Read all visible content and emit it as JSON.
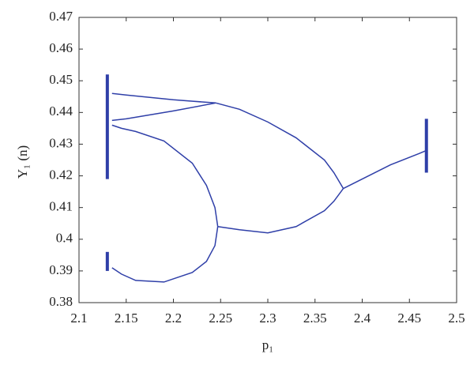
{
  "chart_data": {
    "type": "line",
    "x_label": "p₁",
    "y_label": "Y₁ (n)",
    "xlim": [
      2.1,
      2.5
    ],
    "ylim": [
      0.38,
      0.47
    ],
    "xticks": [
      2.1,
      2.15,
      2.2,
      2.25,
      2.3,
      2.35,
      2.4,
      2.45,
      2.5
    ],
    "yticks": [
      0.38,
      0.39,
      0.4,
      0.41,
      0.42,
      0.43,
      0.44,
      0.45,
      0.46,
      0.47
    ],
    "color": "#2f3fa8",
    "series": [
      {
        "x": [
          2.38,
          2.4,
          2.43,
          2.46,
          2.468
        ],
        "values": [
          0.416,
          0.419,
          0.4235,
          0.427,
          0.428
        ]
      },
      {
        "x": [
          2.468,
          2.468
        ],
        "values": [
          0.421,
          0.438
        ]
      },
      {
        "x": [
          2.38,
          2.37,
          2.36,
          2.33,
          2.3,
          2.27,
          2.245
        ],
        "values": [
          0.416,
          0.421,
          0.425,
          0.432,
          0.437,
          0.441,
          0.443
        ]
      },
      {
        "x": [
          2.38,
          2.37,
          2.36,
          2.33,
          2.3,
          2.27,
          2.247
        ],
        "values": [
          0.416,
          0.412,
          0.409,
          0.404,
          0.402,
          0.403,
          0.404
        ]
      },
      {
        "x": [
          2.245,
          2.2,
          2.15,
          2.135
        ],
        "values": [
          0.443,
          0.444,
          0.4455,
          0.446
        ]
      },
      {
        "x": [
          2.245,
          2.2,
          2.15,
          2.135
        ],
        "values": [
          0.443,
          0.4405,
          0.438,
          0.4375
        ]
      },
      {
        "x": [
          2.247,
          2.244,
          2.235,
          2.22,
          2.19,
          2.16,
          2.145,
          2.135
        ],
        "values": [
          0.404,
          0.41,
          0.417,
          0.424,
          0.431,
          0.434,
          0.435,
          0.436
        ]
      },
      {
        "x": [
          2.247,
          2.244,
          2.235,
          2.22,
          2.19,
          2.16,
          2.145,
          2.135
        ],
        "values": [
          0.404,
          0.398,
          0.393,
          0.3895,
          0.3865,
          0.387,
          0.389,
          0.391
        ]
      },
      {
        "x": [
          2.13,
          2.13
        ],
        "values": [
          0.419,
          0.452
        ]
      },
      {
        "x": [
          2.13,
          2.13
        ],
        "values": [
          0.39,
          0.396
        ]
      }
    ]
  }
}
